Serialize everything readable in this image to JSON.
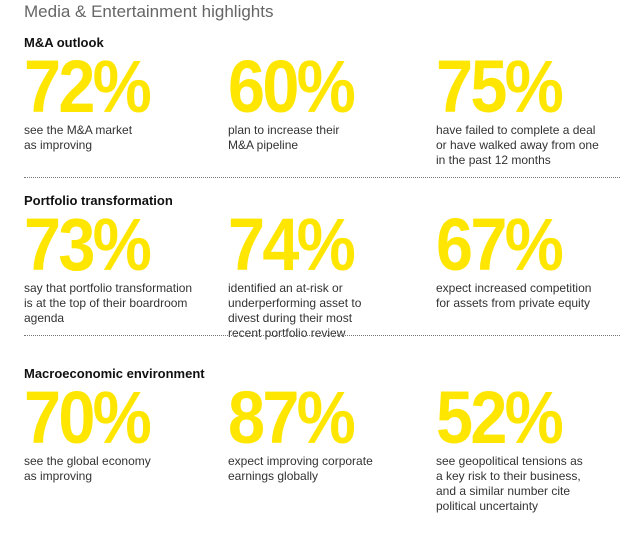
{
  "title": "Media & Entertainment highlights",
  "sections": [
    {
      "heading": "M&A outlook",
      "stats": [
        {
          "value": "72%",
          "lines": [
            "see the M&A market",
            "as improving"
          ]
        },
        {
          "value": "60%",
          "lines": [
            "plan to increase their",
            "M&A pipeline"
          ]
        },
        {
          "value": "75%",
          "lines": [
            "have failed to complete a deal",
            "or have walked away from one",
            "in the past 12 months"
          ]
        }
      ]
    },
    {
      "heading": "Portfolio transformation",
      "stats": [
        {
          "value": "73%",
          "lines": [
            "say that portfolio transformation",
            "is at the top of their boardroom",
            "agenda"
          ]
        },
        {
          "value": "74%",
          "lines": [
            "identified an at-risk or",
            "underperforming asset to",
            "divest during their most",
            "recent portfolio review"
          ]
        },
        {
          "value": "67%",
          "lines": [
            "expect increased competition",
            "for assets from private equity"
          ]
        }
      ]
    },
    {
      "heading": "Macroeconomic environment",
      "stats": [
        {
          "value": "70%",
          "lines": [
            "see the global economy",
            "as improving"
          ]
        },
        {
          "value": "87%",
          "lines": [
            "expect improving corporate",
            "earnings globally"
          ]
        },
        {
          "value": "52%",
          "lines": [
            "see geopolitical tensions as",
            "a key risk to their business,",
            "and a similar number cite",
            "political uncertainty"
          ]
        }
      ]
    }
  ]
}
